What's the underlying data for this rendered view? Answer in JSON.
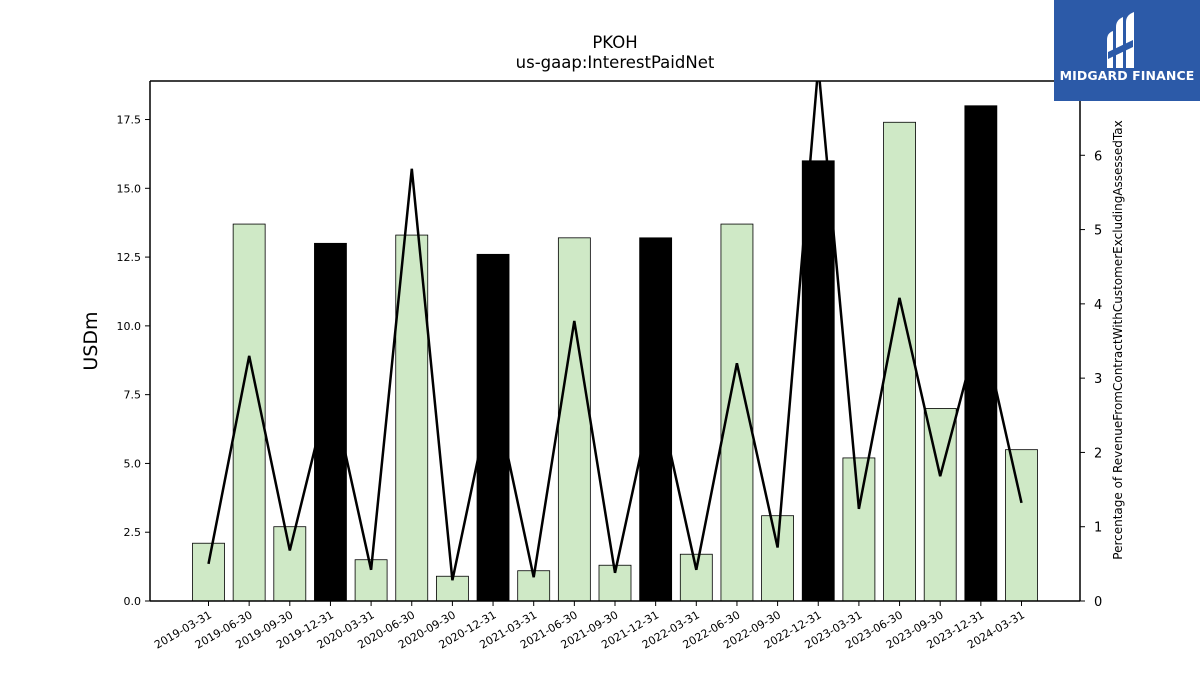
{
  "chart_data": {
    "type": "bar",
    "title": "PKOH",
    "subtitle": "us-gaap:InterestPaidNet",
    "ylabel": "USDm",
    "y2label": "Percentage of RevenueFromContractWithCustomerExcludingAssessedTax",
    "ylim": [
      0,
      18.9
    ],
    "y2lim": [
      0,
      7.0
    ],
    "yticks": [
      "0.0",
      "2.5",
      "5.0",
      "7.5",
      "10.0",
      "12.5",
      "15.0",
      "17.5"
    ],
    "y2ticks": [
      "0",
      "1",
      "2",
      "3",
      "4",
      "5",
      "6"
    ],
    "categories": [
      "2019-03-31",
      "2019-06-30",
      "2019-09-30",
      "2019-12-31",
      "2020-03-31",
      "2020-06-30",
      "2020-09-30",
      "2020-12-31",
      "2021-03-31",
      "2021-06-30",
      "2021-09-30",
      "2021-12-31",
      "2022-03-31",
      "2022-06-30",
      "2022-09-30",
      "2022-12-31",
      "2023-03-31",
      "2023-06-30",
      "2023-09-30",
      "2023-12-31",
      "2024-03-31"
    ],
    "series": [
      {
        "type": "bar",
        "axis": "left",
        "values": [
          2.1,
          13.7,
          2.7,
          13.0,
          1.5,
          13.3,
          0.9,
          12.6,
          1.1,
          13.2,
          1.3,
          13.2,
          1.7,
          13.7,
          3.1,
          16.0,
          5.2,
          17.4,
          7.0,
          18.0,
          5.5
        ],
        "highlight": [
          false,
          false,
          false,
          true,
          false,
          false,
          false,
          true,
          false,
          false,
          false,
          true,
          false,
          false,
          false,
          true,
          false,
          false,
          false,
          true,
          false
        ]
      },
      {
        "type": "line",
        "axis": "right",
        "values": [
          0.5,
          3.3,
          0.68,
          2.9,
          0.42,
          5.82,
          0.28,
          2.88,
          0.32,
          3.77,
          0.38,
          2.9,
          0.42,
          3.2,
          0.72,
          7.2,
          1.24,
          4.08,
          1.68,
          3.75,
          1.32
        ]
      }
    ],
    "colors": {
      "bar": "#cfe9c6",
      "bar_highlight": "#000000",
      "line": "#000000"
    },
    "grid": false,
    "legend": "none"
  },
  "logo": {
    "text": "MIDGARD FINANCE",
    "background": "#2c5aa8"
  }
}
